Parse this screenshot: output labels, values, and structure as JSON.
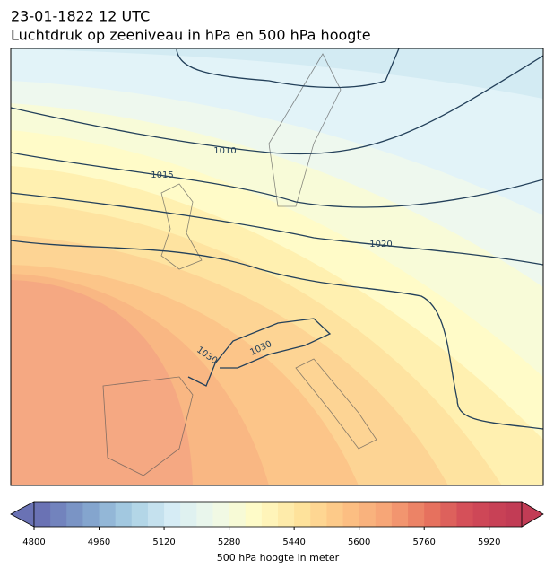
{
  "header": {
    "title": "23-01-1822 12 UTC",
    "subtitle": "Luchtdruk op zeeniveau in hPa en 500 hPa hoogte"
  },
  "map": {
    "isobar_labels": [
      1010,
      1015,
      1020,
      1030,
      1030
    ]
  },
  "colorbar": {
    "label": "500 hPa hoogte in meter",
    "lim": [
      4800,
      6000
    ],
    "levels": 30,
    "ticks": [
      4800,
      4960,
      5120,
      5280,
      5440,
      5600,
      5760,
      5920
    ],
    "colormap": [
      "#6a72b4",
      "#7f9fcb",
      "#a6cde2",
      "#d5ecf5",
      "#eef8ea",
      "#fffbc6",
      "#fee49d",
      "#fdc585",
      "#f7a577",
      "#e8765f",
      "#d24a58",
      "#c23c55"
    ]
  }
}
